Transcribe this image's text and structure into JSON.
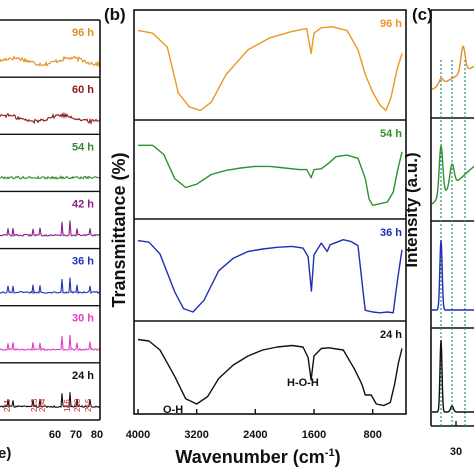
{
  "chart_data": [
    {
      "panel": "a",
      "type": "line",
      "panel_label": "",
      "xlabel_fragment": "e)",
      "x_ticks": [
        "60",
        "70",
        "80"
      ],
      "peak_labels": [
        "211",
        "213",
        "204",
        "116",
        "220",
        "215"
      ],
      "series": [
        {
          "name": "96 h",
          "color": "#e0901f",
          "kind": "amorphous"
        },
        {
          "name": "60 h",
          "color": "#8b1a1a",
          "kind": "amorphous"
        },
        {
          "name": "54 h",
          "color": "#2e8b2e",
          "kind": "weak"
        },
        {
          "name": "42 h",
          "color": "#8b1e8b",
          "kind": "crystalline"
        },
        {
          "name": "36 h",
          "color": "#2233bb",
          "kind": "crystalline"
        },
        {
          "name": "30 h",
          "color": "#e040c8",
          "kind": "crystalline"
        },
        {
          "name": "24 h",
          "color": "#111111",
          "kind": "crystalline"
        }
      ]
    },
    {
      "panel": "b",
      "type": "line",
      "panel_label": "(b)",
      "xlabel": "Wavenumber (cm",
      "xlabel_sup": "-1",
      "xlabel_end": ")",
      "ylabel": "Transmittance (%)",
      "x_ticks": [
        "4000",
        "3200",
        "2400",
        "1600",
        "800"
      ],
      "xlim": [
        4000,
        400
      ],
      "annotations": [
        "O-H",
        "H-O-H"
      ],
      "series": [
        {
          "name": "96 h",
          "color": "#f0951f",
          "points": [
            [
              4000,
              0.93
            ],
            [
              3800,
              0.9
            ],
            [
              3600,
              0.75
            ],
            [
              3450,
              0.25
            ],
            [
              3300,
              0.1
            ],
            [
              3150,
              0.06
            ],
            [
              3000,
              0.15
            ],
            [
              2800,
              0.45
            ],
            [
              2500,
              0.72
            ],
            [
              2200,
              0.85
            ],
            [
              1900,
              0.92
            ],
            [
              1700,
              0.95
            ],
            [
              1640,
              0.68
            ],
            [
              1600,
              0.9
            ],
            [
              1500,
              0.96
            ],
            [
              1350,
              0.97
            ],
            [
              1150,
              0.93
            ],
            [
              1000,
              0.72
            ],
            [
              900,
              0.45
            ],
            [
              800,
              0.26
            ],
            [
              700,
              0.12
            ],
            [
              620,
              0.06
            ],
            [
              550,
              0.2
            ],
            [
              470,
              0.5
            ],
            [
              400,
              0.68
            ]
          ]
        },
        {
          "name": "54 h",
          "color": "#2e922e",
          "points": [
            [
              4000,
              0.86
            ],
            [
              3800,
              0.86
            ],
            [
              3650,
              0.75
            ],
            [
              3500,
              0.45
            ],
            [
              3350,
              0.34
            ],
            [
              3200,
              0.38
            ],
            [
              3000,
              0.5
            ],
            [
              2800,
              0.55
            ],
            [
              2600,
              0.58
            ],
            [
              2400,
              0.6
            ],
            [
              2200,
              0.6
            ],
            [
              2000,
              0.58
            ],
            [
              1800,
              0.56
            ],
            [
              1700,
              0.56
            ],
            [
              1640,
              0.46
            ],
            [
              1600,
              0.56
            ],
            [
              1500,
              0.57
            ],
            [
              1400,
              0.64
            ],
            [
              1300,
              0.72
            ],
            [
              1150,
              0.74
            ],
            [
              1000,
              0.7
            ],
            [
              900,
              0.45
            ],
            [
              850,
              0.2
            ],
            [
              800,
              0.12
            ],
            [
              700,
              0.14
            ],
            [
              600,
              0.16
            ],
            [
              520,
              0.28
            ],
            [
              460,
              0.55
            ],
            [
              400,
              0.78
            ]
          ]
        },
        {
          "name": "36 h",
          "color": "#1f2fb5",
          "points": [
            [
              4000,
              0.91
            ],
            [
              3850,
              0.89
            ],
            [
              3700,
              0.75
            ],
            [
              3500,
              0.3
            ],
            [
              3380,
              0.1
            ],
            [
              3250,
              0.06
            ],
            [
              3100,
              0.2
            ],
            [
              2900,
              0.55
            ],
            [
              2700,
              0.7
            ],
            [
              2500,
              0.78
            ],
            [
              2300,
              0.81
            ],
            [
              2100,
              0.83
            ],
            [
              1900,
              0.84
            ],
            [
              1750,
              0.82
            ],
            [
              1680,
              0.72
            ],
            [
              1635,
              0.31
            ],
            [
              1600,
              0.74
            ],
            [
              1500,
              0.88
            ],
            [
              1420,
              0.78
            ],
            [
              1380,
              0.86
            ],
            [
              1200,
              0.92
            ],
            [
              1100,
              0.9
            ],
            [
              1000,
              0.85
            ],
            [
              930,
              0.3
            ],
            [
              900,
              0.08
            ],
            [
              800,
              0.06
            ],
            [
              700,
              0.05
            ],
            [
              600,
              0.06
            ],
            [
              520,
              0.05
            ],
            [
              460,
              0.45
            ],
            [
              400,
              0.8
            ]
          ]
        },
        {
          "name": "24 h",
          "color": "#111111",
          "points": [
            [
              4000,
              0.94
            ],
            [
              3850,
              0.92
            ],
            [
              3700,
              0.8
            ],
            [
              3500,
              0.45
            ],
            [
              3350,
              0.15
            ],
            [
              3200,
              0.08
            ],
            [
              3050,
              0.18
            ],
            [
              2900,
              0.42
            ],
            [
              2700,
              0.6
            ],
            [
              2500,
              0.72
            ],
            [
              2300,
              0.8
            ],
            [
              2100,
              0.84
            ],
            [
              1900,
              0.86
            ],
            [
              1750,
              0.84
            ],
            [
              1680,
              0.7
            ],
            [
              1640,
              0.4
            ],
            [
              1600,
              0.72
            ],
            [
              1500,
              0.82
            ],
            [
              1400,
              0.83
            ],
            [
              1200,
              0.8
            ],
            [
              1050,
              0.55
            ],
            [
              950,
              0.35
            ],
            [
              900,
              0.2
            ],
            [
              820,
              0.2
            ],
            [
              750,
              0.08
            ],
            [
              650,
              0.06
            ],
            [
              560,
              0.1
            ],
            [
              500,
              0.35
            ],
            [
              450,
              0.62
            ],
            [
              400,
              0.82
            ]
          ]
        }
      ]
    },
    {
      "panel": "c",
      "type": "line",
      "panel_label": "(c)",
      "ylabel": "Intensity (a.u.)",
      "x_ticks": [
        "30"
      ],
      "series": [
        {
          "name": "",
          "color": "#e0901f"
        },
        {
          "name": "",
          "color": "#2e922e"
        },
        {
          "name": "",
          "color": "#1f2fb5"
        },
        {
          "name": "",
          "color": "#111111"
        }
      ]
    }
  ]
}
